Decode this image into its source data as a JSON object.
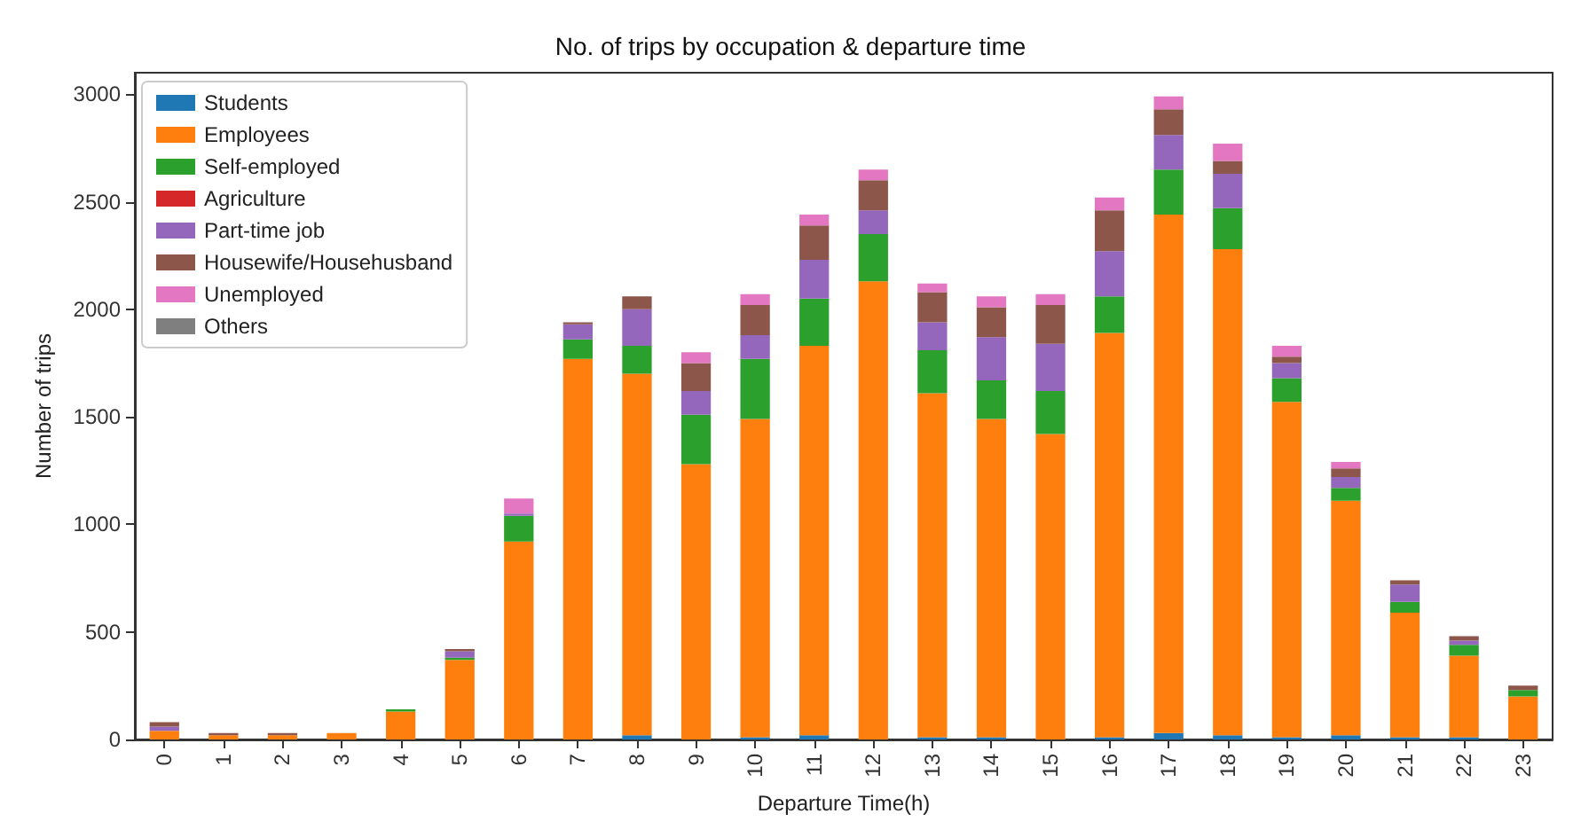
{
  "chart_data": {
    "type": "bar",
    "title": "No. of trips by occupation & departure time",
    "xlabel": "Departure Time(h)",
    "ylabel": "Number of trips",
    "categories": [
      "0",
      "1",
      "2",
      "3",
      "4",
      "5",
      "6",
      "7",
      "8",
      "9",
      "10",
      "11",
      "12",
      "13",
      "14",
      "15",
      "16",
      "17",
      "18",
      "19",
      "20",
      "21",
      "22",
      "23"
    ],
    "stacked": true,
    "ylim": [
      0,
      3100
    ],
    "yticks": [
      0,
      500,
      1000,
      1500,
      2000,
      2500,
      3000
    ],
    "grid": false,
    "legend": "top left",
    "series": [
      {
        "name": "Students",
        "color": "#1f77b4",
        "values": [
          0,
          0,
          0,
          0,
          0,
          0,
          0,
          0,
          20,
          0,
          10,
          20,
          0,
          10,
          10,
          0,
          10,
          30,
          20,
          10,
          20,
          10,
          10,
          0
        ]
      },
      {
        "name": "Employees",
        "color": "#ff7f0e",
        "values": [
          40,
          20,
          20,
          30,
          130,
          370,
          920,
          1770,
          1680,
          1280,
          1480,
          1810,
          2130,
          1600,
          1480,
          1420,
          1880,
          2410,
          2260,
          1560,
          1090,
          580,
          380,
          200
        ]
      },
      {
        "name": "Self-employed",
        "color": "#2ca02c",
        "values": [
          0,
          0,
          0,
          0,
          10,
          10,
          120,
          90,
          130,
          230,
          280,
          220,
          220,
          200,
          180,
          200,
          170,
          210,
          190,
          110,
          60,
          50,
          50,
          30
        ]
      },
      {
        "name": "Agriculture",
        "color": "#d62728",
        "values": [
          0,
          0,
          0,
          0,
          0,
          0,
          0,
          0,
          0,
          0,
          0,
          0,
          0,
          0,
          0,
          0,
          0,
          0,
          0,
          0,
          0,
          0,
          0,
          0
        ]
      },
      {
        "name": "Part-time job",
        "color": "#9467bd",
        "values": [
          20,
          0,
          0,
          0,
          0,
          30,
          10,
          70,
          170,
          110,
          110,
          180,
          110,
          130,
          200,
          220,
          210,
          160,
          160,
          70,
          50,
          80,
          20,
          0
        ]
      },
      {
        "name": "Housewife/Househusband",
        "color": "#8c564b",
        "values": [
          20,
          10,
          10,
          0,
          0,
          10,
          0,
          10,
          60,
          130,
          140,
          160,
          140,
          140,
          140,
          180,
          190,
          120,
          60,
          30,
          40,
          20,
          20,
          20
        ]
      },
      {
        "name": "Unemployed",
        "color": "#e377c2",
        "values": [
          0,
          0,
          0,
          0,
          0,
          0,
          70,
          0,
          0,
          50,
          50,
          50,
          50,
          40,
          50,
          50,
          60,
          60,
          80,
          50,
          30,
          0,
          0,
          0
        ]
      },
      {
        "name": "Others",
        "color": "#7f7f7f",
        "values": [
          0,
          0,
          0,
          0,
          0,
          0,
          0,
          0,
          0,
          0,
          0,
          0,
          0,
          0,
          0,
          0,
          0,
          0,
          0,
          0,
          0,
          0,
          0,
          0
        ]
      }
    ]
  }
}
